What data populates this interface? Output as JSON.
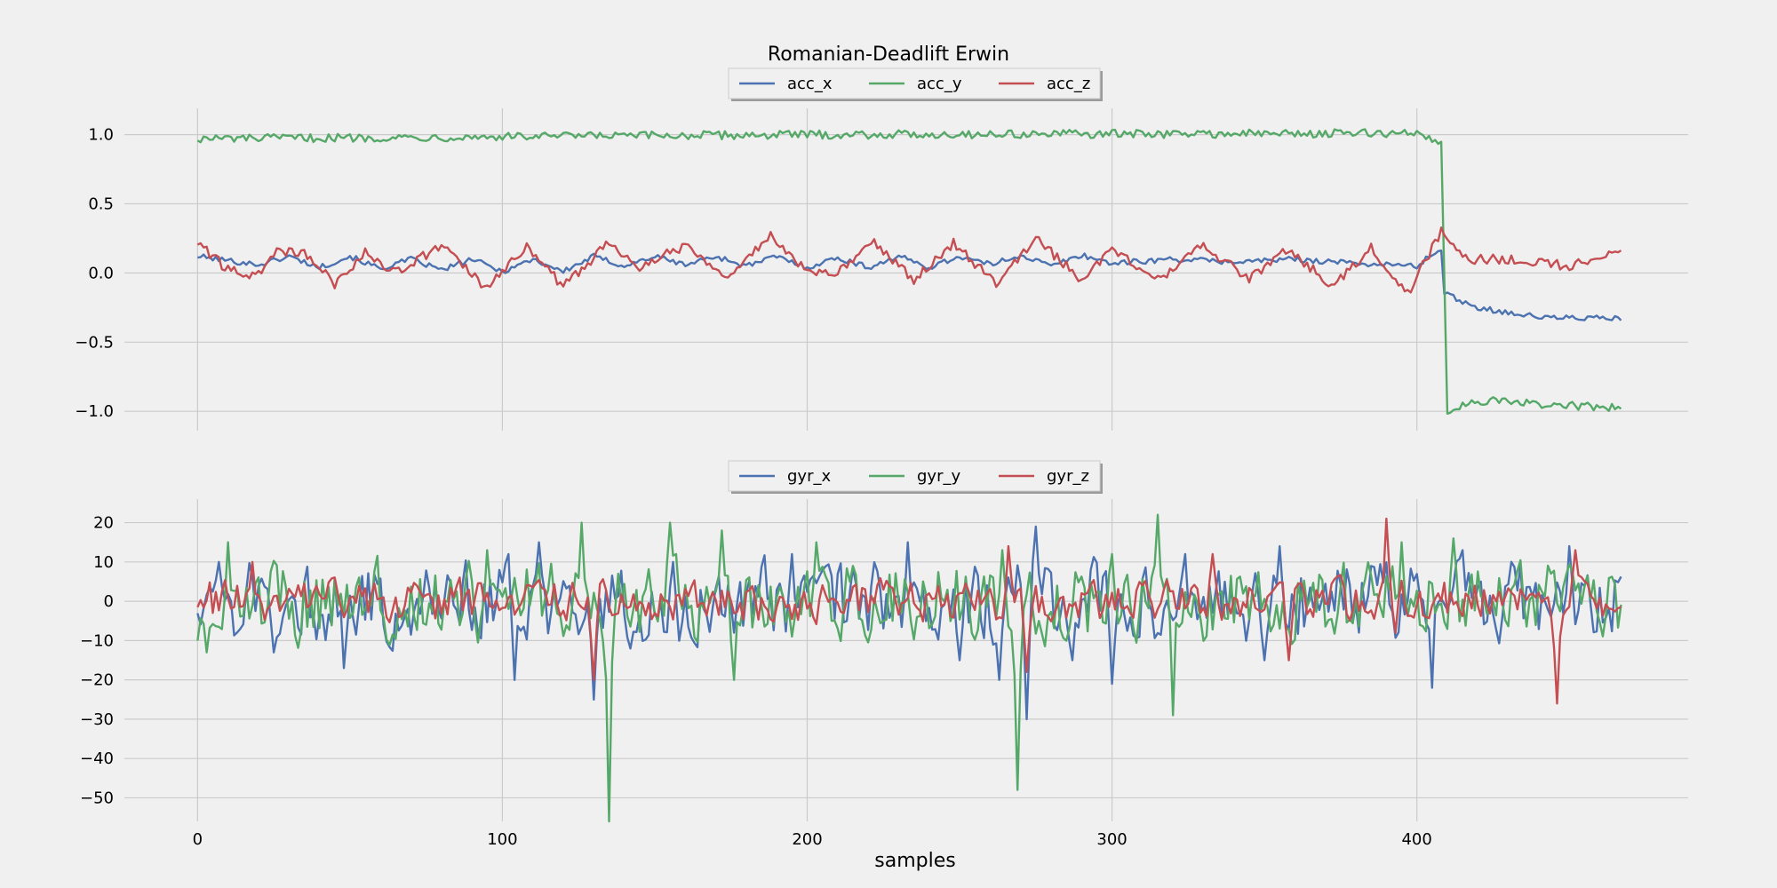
{
  "chart_data": {
    "title": "Romanian-Deadlift Erwin",
    "xlabel": "samples",
    "xlim": [
      -24,
      489
    ],
    "xticks": [
      0,
      100,
      200,
      300,
      400
    ],
    "n_samples": 468,
    "grid": true,
    "panels": [
      {
        "type": "line",
        "ylim": [
          -1.14,
          1.19
        ],
        "yticks": [
          1.0,
          0.5,
          0.0,
          -0.5,
          -1.0
        ],
        "ytick_labels": [
          "1.0",
          "0.5",
          "0.0",
          "−0.5",
          "−1.0"
        ],
        "legend": "top-center",
        "series": [
          {
            "name": "acc_x",
            "color": "#4c72b0",
            "knots": [
              [
                0,
                0.12
              ],
              [
                20,
                0.06
              ],
              [
                30,
                0.12
              ],
              [
                40,
                0.04
              ],
              [
                50,
                0.12
              ],
              [
                60,
                0.03
              ],
              [
                70,
                0.1
              ],
              [
                80,
                0.02
              ],
              [
                90,
                0.1
              ],
              [
                100,
                0.01
              ],
              [
                110,
                0.1
              ],
              [
                120,
                0.01
              ],
              [
                130,
                0.12
              ],
              [
                140,
                0.05
              ],
              [
                150,
                0.12
              ],
              [
                160,
                0.06
              ],
              [
                170,
                0.12
              ],
              [
                180,
                0.05
              ],
              [
                190,
                0.12
              ],
              [
                200,
                0.04
              ],
              [
                210,
                0.11
              ],
              [
                220,
                0.04
              ],
              [
                230,
                0.12
              ],
              [
                240,
                0.04
              ],
              [
                250,
                0.12
              ],
              [
                260,
                0.06
              ],
              [
                270,
                0.13
              ],
              [
                280,
                0.05
              ],
              [
                290,
                0.13
              ],
              [
                300,
                0.07
              ],
              [
                320,
                0.1
              ],
              [
                340,
                0.08
              ],
              [
                360,
                0.1
              ],
              [
                380,
                0.07
              ],
              [
                400,
                0.05
              ],
              [
                408,
                0.18
              ],
              [
                409,
                -0.15
              ],
              [
                420,
                -0.25
              ],
              [
                440,
                -0.32
              ],
              [
                468,
                -0.33
              ]
            ],
            "noise": 0.02
          },
          {
            "name": "acc_y",
            "color": "#55a868",
            "knots": [
              [
                0,
                0.97
              ],
              [
                200,
                1.0
              ],
              [
                400,
                1.01
              ],
              [
                407,
                0.95
              ],
              [
                408,
                0.95
              ],
              [
                410,
                -1.0
              ],
              [
                420,
                -0.92
              ],
              [
                440,
                -0.95
              ],
              [
                468,
                -0.98
              ]
            ],
            "noise": 0.03
          },
          {
            "name": "acc_z",
            "color": "#c44e52",
            "knots": [
              [
                0,
                0.22
              ],
              [
                10,
                0.02
              ],
              [
                20,
                -0.02
              ],
              [
                25,
                0.15
              ],
              [
                35,
                0.15
              ],
              [
                45,
                -0.08
              ],
              [
                55,
                0.15
              ],
              [
                65,
                0.0
              ],
              [
                80,
                0.2
              ],
              [
                95,
                -0.12
              ],
              [
                108,
                0.2
              ],
              [
                120,
                -0.1
              ],
              [
                135,
                0.22
              ],
              [
                145,
                0.05
              ],
              [
                160,
                0.2
              ],
              [
                175,
                -0.03
              ],
              [
                188,
                0.28
              ],
              [
                200,
                0.0
              ],
              [
                210,
                0.0
              ],
              [
                222,
                0.23
              ],
              [
                235,
                -0.05
              ],
              [
                248,
                0.22
              ],
              [
                262,
                -0.08
              ],
              [
                275,
                0.25
              ],
              [
                290,
                -0.05
              ],
              [
                300,
                0.18
              ],
              [
                315,
                -0.05
              ],
              [
                330,
                0.2
              ],
              [
                345,
                -0.05
              ],
              [
                358,
                0.18
              ],
              [
                372,
                -0.1
              ],
              [
                385,
                0.18
              ],
              [
                397,
                -0.15
              ],
              [
                408,
                0.3
              ],
              [
                415,
                0.1
              ],
              [
                430,
                0.1
              ],
              [
                450,
                0.05
              ],
              [
                468,
                0.15
              ]
            ],
            "noise": 0.035
          }
        ]
      },
      {
        "type": "line",
        "ylim": [
          -56,
          26
        ],
        "yticks": [
          20,
          10,
          0,
          -10,
          -20,
          -30,
          -40,
          -50
        ],
        "ytick_labels": [
          "20",
          "10",
          "0",
          "−10",
          "−20",
          "−30",
          "−40",
          "−50"
        ],
        "legend": "top-center",
        "series": [
          {
            "name": "gyr_x",
            "color": "#4c72b0",
            "amp": 8.5,
            "spikes": [
              [
                7,
                10
              ],
              [
                25,
                -13
              ],
              [
                48,
                -17
              ],
              [
                104,
                -20
              ],
              [
                112,
                15
              ],
              [
                130,
                -25
              ],
              [
                156,
                10
              ],
              [
                176,
                -8
              ],
              [
                195,
                12
              ],
              [
                233,
                15
              ],
              [
                250,
                -15
              ],
              [
                263,
                -20
              ],
              [
                272,
                -30
              ],
              [
                275,
                19
              ],
              [
                287,
                -15
              ],
              [
                300,
                -21
              ],
              [
                324,
                12
              ],
              [
                350,
                -15
              ],
              [
                355,
                14
              ],
              [
                405,
                -22
              ],
              [
                415,
                13
              ],
              [
                450,
                14
              ]
            ]
          },
          {
            "name": "gyr_y",
            "color": "#55a868",
            "amp": 8.5,
            "spikes": [
              [
                0,
                -10
              ],
              [
                3,
                -13
              ],
              [
                10,
                15
              ],
              [
                95,
                13
              ],
              [
                126,
                20
              ],
              [
                135,
                -56
              ],
              [
                155,
                20
              ],
              [
                172,
                18
              ],
              [
                176,
                -20
              ],
              [
                203,
                15
              ],
              [
                264,
                13
              ],
              [
                269,
                -48
              ],
              [
                300,
                12
              ],
              [
                315,
                22
              ],
              [
                320,
                -29
              ],
              [
                395,
                15
              ],
              [
                412,
                16
              ]
            ]
          },
          {
            "name": "gyr_z",
            "color": "#c44e52",
            "amp": 4.5,
            "spikes": [
              [
                18,
                10
              ],
              [
                130,
                -20
              ],
              [
                266,
                14
              ],
              [
                272,
                -18
              ],
              [
                333,
                12
              ],
              [
                358,
                -15
              ],
              [
                390,
                21
              ],
              [
                393,
                -8
              ],
              [
                446,
                -26
              ],
              [
                452,
                13
              ]
            ]
          }
        ]
      }
    ]
  }
}
